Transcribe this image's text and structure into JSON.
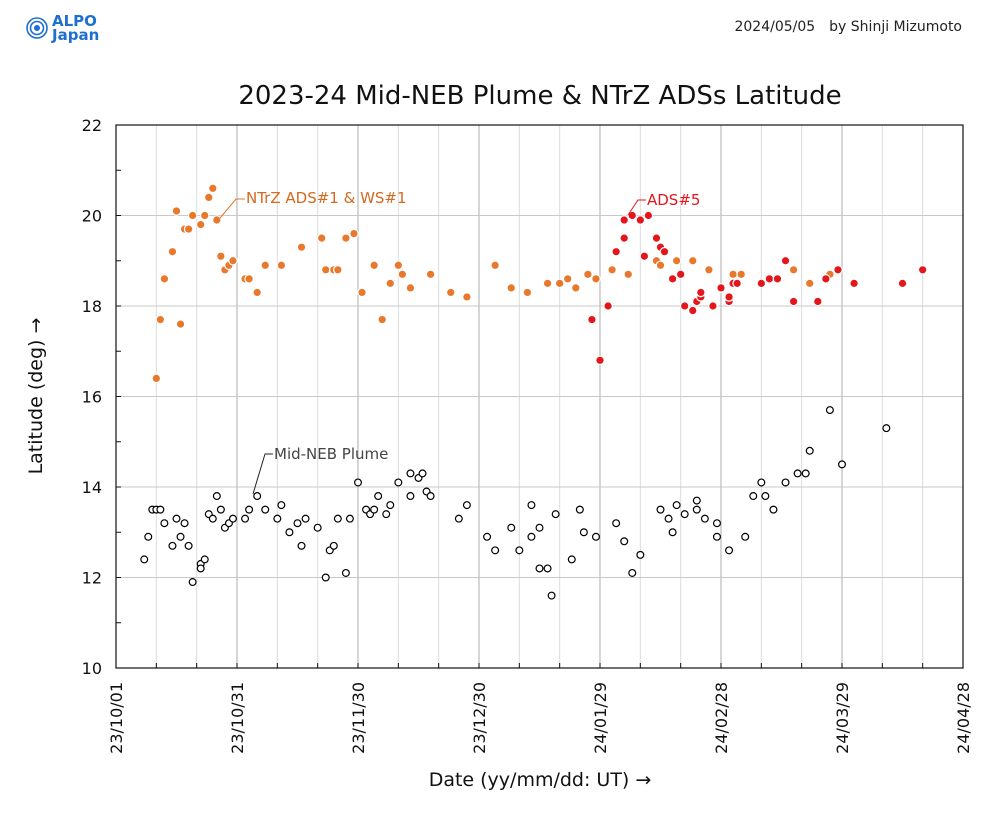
{
  "header": {
    "logo_line1": "ALPO",
    "logo_line2": "Japan",
    "date": "2024/05/05",
    "author": "by Shinji Mizumoto"
  },
  "colors": {
    "ntrz": "#e8782b",
    "ads5": "#e3171b",
    "plume": "#000000",
    "logo": "#1f6fd0"
  },
  "chart_data": {
    "type": "scatter",
    "title": "2023-24 Mid-NEB Plume & NTrZ ADSs Latitude",
    "xlabel": "Date (yy/mm/dd: UT) →",
    "ylabel": "Latitude (deg) →",
    "xlim": [
      "2023-10-01",
      "2024-04-28"
    ],
    "ylim": [
      10,
      22
    ],
    "x_ticks": [
      "23/10/01",
      "23/10/31",
      "23/11/30",
      "23/12/30",
      "24/01/29",
      "24/02/28",
      "24/03/29",
      "24/04/28"
    ],
    "y_ticks": [
      "10",
      "12",
      "14",
      "16",
      "18",
      "20",
      "22"
    ],
    "grid": true,
    "annotations": [
      {
        "text": "NTrZ ADS#1 & WS#1",
        "series": "ntrz"
      },
      {
        "text": "ADS#5",
        "series": "ads5"
      },
      {
        "text": "Mid-NEB Plume",
        "series": "plume"
      }
    ],
    "series": [
      {
        "key": "ntrz",
        "style": "filled",
        "points": [
          [
            "2023-10-11",
            16.4
          ],
          [
            "2023-10-12",
            17.7
          ],
          [
            "2023-10-13",
            18.6
          ],
          [
            "2023-10-15",
            19.2
          ],
          [
            "2023-10-16",
            20.1
          ],
          [
            "2023-10-17",
            17.6
          ],
          [
            "2023-10-18",
            19.7
          ],
          [
            "2023-10-19",
            19.7
          ],
          [
            "2023-10-20",
            20.0
          ],
          [
            "2023-10-22",
            19.8
          ],
          [
            "2023-10-23",
            20.0
          ],
          [
            "2023-10-24",
            20.4
          ],
          [
            "2023-10-25",
            20.6
          ],
          [
            "2023-10-26",
            19.9
          ],
          [
            "2023-10-27",
            19.1
          ],
          [
            "2023-10-28",
            18.8
          ],
          [
            "2023-10-29",
            18.9
          ],
          [
            "2023-10-30",
            19.0
          ],
          [
            "2023-11-02",
            18.6
          ],
          [
            "2023-11-03",
            18.6
          ],
          [
            "2023-11-05",
            18.3
          ],
          [
            "2023-11-07",
            18.9
          ],
          [
            "2023-11-11",
            18.9
          ],
          [
            "2023-11-16",
            19.3
          ],
          [
            "2023-11-21",
            19.5
          ],
          [
            "2023-11-22",
            18.8
          ],
          [
            "2023-11-24",
            18.8
          ],
          [
            "2023-11-25",
            18.8
          ],
          [
            "2023-11-27",
            19.5
          ],
          [
            "2023-11-29",
            19.6
          ],
          [
            "2023-12-01",
            18.3
          ],
          [
            "2023-12-04",
            18.9
          ],
          [
            "2023-12-06",
            17.7
          ],
          [
            "2023-12-08",
            18.5
          ],
          [
            "2023-12-10",
            18.9
          ],
          [
            "2023-12-11",
            18.7
          ],
          [
            "2023-12-13",
            18.4
          ],
          [
            "2023-12-18",
            18.7
          ],
          [
            "2023-12-23",
            18.3
          ],
          [
            "2023-12-27",
            18.2
          ],
          [
            "2024-01-03",
            18.9
          ],
          [
            "2024-01-07",
            18.4
          ],
          [
            "2024-01-11",
            18.3
          ],
          [
            "2024-01-16",
            18.5
          ],
          [
            "2024-01-19",
            18.5
          ],
          [
            "2024-01-21",
            18.6
          ],
          [
            "2024-01-23",
            18.4
          ],
          [
            "2024-01-26",
            18.7
          ],
          [
            "2024-01-28",
            18.6
          ],
          [
            "2024-02-01",
            18.8
          ],
          [
            "2024-02-05",
            18.7
          ],
          [
            "2024-02-12",
            19.0
          ],
          [
            "2024-02-13",
            18.9
          ],
          [
            "2024-02-17",
            19.0
          ],
          [
            "2024-02-21",
            19.0
          ],
          [
            "2024-02-25",
            18.8
          ],
          [
            "2024-03-02",
            18.7
          ],
          [
            "2024-03-04",
            18.7
          ],
          [
            "2024-03-17",
            18.8
          ],
          [
            "2024-03-21",
            18.5
          ],
          [
            "2024-03-26",
            18.7
          ]
        ]
      },
      {
        "key": "ads5",
        "style": "filled",
        "points": [
          [
            "2024-01-27",
            17.7
          ],
          [
            "2024-01-29",
            16.8
          ],
          [
            "2024-01-31",
            18.0
          ],
          [
            "2024-02-02",
            19.2
          ],
          [
            "2024-02-04",
            19.9
          ],
          [
            "2024-02-04",
            19.5
          ],
          [
            "2024-02-06",
            20.0
          ],
          [
            "2024-02-08",
            19.9
          ],
          [
            "2024-02-09",
            19.1
          ],
          [
            "2024-02-10",
            20.0
          ],
          [
            "2024-02-12",
            19.5
          ],
          [
            "2024-02-13",
            19.3
          ],
          [
            "2024-02-14",
            19.2
          ],
          [
            "2024-02-16",
            18.6
          ],
          [
            "2024-02-18",
            18.7
          ],
          [
            "2024-02-19",
            18.0
          ],
          [
            "2024-02-21",
            17.9
          ],
          [
            "2024-02-22",
            18.1
          ],
          [
            "2024-02-23",
            18.2
          ],
          [
            "2024-02-23",
            18.3
          ],
          [
            "2024-02-26",
            18.0
          ],
          [
            "2024-02-28",
            18.4
          ],
          [
            "2024-03-01",
            18.1
          ],
          [
            "2024-03-01",
            18.2
          ],
          [
            "2024-03-02",
            18.5
          ],
          [
            "2024-03-03",
            18.5
          ],
          [
            "2024-03-09",
            18.5
          ],
          [
            "2024-03-11",
            18.6
          ],
          [
            "2024-03-13",
            18.6
          ],
          [
            "2024-03-15",
            19.0
          ],
          [
            "2024-03-17",
            18.1
          ],
          [
            "2024-03-23",
            18.1
          ],
          [
            "2024-03-25",
            18.6
          ],
          [
            "2024-03-28",
            18.8
          ],
          [
            "2024-04-01",
            18.5
          ],
          [
            "2024-04-13",
            18.5
          ],
          [
            "2024-04-18",
            18.8
          ]
        ]
      },
      {
        "key": "plume",
        "style": "open",
        "points": [
          [
            "2023-10-08",
            12.4
          ],
          [
            "2023-10-09",
            12.9
          ],
          [
            "2023-10-10",
            13.5
          ],
          [
            "2023-10-11",
            13.5
          ],
          [
            "2023-10-12",
            13.5
          ],
          [
            "2023-10-13",
            13.2
          ],
          [
            "2023-10-15",
            12.7
          ],
          [
            "2023-10-16",
            13.3
          ],
          [
            "2023-10-17",
            12.9
          ],
          [
            "2023-10-18",
            13.2
          ],
          [
            "2023-10-19",
            12.7
          ],
          [
            "2023-10-20",
            11.9
          ],
          [
            "2023-10-22",
            12.3
          ],
          [
            "2023-10-22",
            12.2
          ],
          [
            "2023-10-23",
            12.4
          ],
          [
            "2023-10-24",
            13.4
          ],
          [
            "2023-10-25",
            13.3
          ],
          [
            "2023-10-26",
            13.8
          ],
          [
            "2023-10-27",
            13.5
          ],
          [
            "2023-10-28",
            13.1
          ],
          [
            "2023-10-29",
            13.2
          ],
          [
            "2023-10-30",
            13.3
          ],
          [
            "2023-11-02",
            13.3
          ],
          [
            "2023-11-03",
            13.5
          ],
          [
            "2023-11-05",
            13.8
          ],
          [
            "2023-11-07",
            13.5
          ],
          [
            "2023-11-10",
            13.3
          ],
          [
            "2023-11-11",
            13.6
          ],
          [
            "2023-11-13",
            13.0
          ],
          [
            "2023-11-15",
            13.2
          ],
          [
            "2023-11-16",
            12.7
          ],
          [
            "2023-11-17",
            13.3
          ],
          [
            "2023-11-20",
            13.1
          ],
          [
            "2023-11-22",
            12.0
          ],
          [
            "2023-11-23",
            12.6
          ],
          [
            "2023-11-24",
            12.7
          ],
          [
            "2023-11-25",
            13.3
          ],
          [
            "2023-11-27",
            12.1
          ],
          [
            "2023-11-28",
            13.3
          ],
          [
            "2023-11-30",
            14.1
          ],
          [
            "2023-12-02",
            13.5
          ],
          [
            "2023-12-03",
            13.4
          ],
          [
            "2023-12-04",
            13.5
          ],
          [
            "2023-12-05",
            13.8
          ],
          [
            "2023-12-07",
            13.4
          ],
          [
            "2023-12-08",
            13.6
          ],
          [
            "2023-12-10",
            14.1
          ],
          [
            "2023-12-13",
            14.3
          ],
          [
            "2023-12-13",
            13.8
          ],
          [
            "2023-12-15",
            14.2
          ],
          [
            "2023-12-16",
            14.3
          ],
          [
            "2023-12-17",
            13.9
          ],
          [
            "2023-12-18",
            13.8
          ],
          [
            "2023-12-25",
            13.3
          ],
          [
            "2023-12-27",
            13.6
          ],
          [
            "2024-01-01",
            12.9
          ],
          [
            "2024-01-03",
            12.6
          ],
          [
            "2024-01-07",
            13.1
          ],
          [
            "2024-01-09",
            12.6
          ],
          [
            "2024-01-12",
            12.9
          ],
          [
            "2024-01-12",
            13.6
          ],
          [
            "2024-01-14",
            13.1
          ],
          [
            "2024-01-14",
            12.2
          ],
          [
            "2024-01-16",
            12.2
          ],
          [
            "2024-01-17",
            11.6
          ],
          [
            "2024-01-18",
            13.4
          ],
          [
            "2024-01-22",
            12.4
          ],
          [
            "2024-01-24",
            13.5
          ],
          [
            "2024-01-25",
            13.0
          ],
          [
            "2024-01-28",
            12.9
          ],
          [
            "2024-02-02",
            13.2
          ],
          [
            "2024-02-04",
            12.8
          ],
          [
            "2024-02-06",
            12.1
          ],
          [
            "2024-02-08",
            12.5
          ],
          [
            "2024-02-13",
            13.5
          ],
          [
            "2024-02-15",
            13.3
          ],
          [
            "2024-02-16",
            13.0
          ],
          [
            "2024-02-17",
            13.6
          ],
          [
            "2024-02-19",
            13.4
          ],
          [
            "2024-02-22",
            13.7
          ],
          [
            "2024-02-22",
            13.5
          ],
          [
            "2024-02-24",
            13.3
          ],
          [
            "2024-02-27",
            13.2
          ],
          [
            "2024-02-27",
            12.9
          ],
          [
            "2024-03-01",
            12.6
          ],
          [
            "2024-03-05",
            12.9
          ],
          [
            "2024-03-07",
            13.8
          ],
          [
            "2024-03-09",
            14.1
          ],
          [
            "2024-03-10",
            13.8
          ],
          [
            "2024-03-12",
            13.5
          ],
          [
            "2024-03-15",
            14.1
          ],
          [
            "2024-03-18",
            14.3
          ],
          [
            "2024-03-20",
            14.3
          ],
          [
            "2024-03-21",
            14.8
          ],
          [
            "2024-03-26",
            15.7
          ],
          [
            "2024-03-29",
            14.5
          ],
          [
            "2024-04-09",
            15.3
          ]
        ]
      }
    ]
  }
}
